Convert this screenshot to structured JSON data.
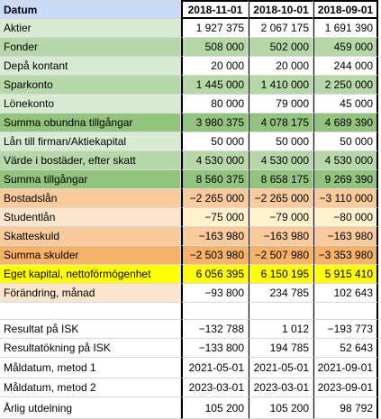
{
  "colors": {
    "light_green": "#d9ead3",
    "mid_green": "#93c47d",
    "light_orange": "#fce5cd",
    "mid_orange": "#f6b26b",
    "yellow": "#ffff00",
    "white": "#ffffff",
    "header_blue": "#c9daf8"
  },
  "header": {
    "label": "Datum",
    "dates": [
      "2018-11-01",
      "2018-10-01",
      "2018-09-01"
    ]
  },
  "rows": [
    {
      "label": "Aktier",
      "values": [
        "1 927 375",
        "2 067 175",
        "1 691 390"
      ],
      "label_color": "#d9ead3",
      "value_color": "#ffffff"
    },
    {
      "label": "Fonder",
      "values": [
        "508 000",
        "502 000",
        "459 000"
      ],
      "label_color": "#b6d7a8",
      "value_color": "#b6d7a8"
    },
    {
      "label": "Depå kontant",
      "values": [
        "20 000",
        "20 000",
        "244 000"
      ],
      "label_color": "#d9ead3",
      "value_color": "#ffffff"
    },
    {
      "label": "Sparkonto",
      "values": [
        "1 445 000",
        "1 410 000",
        "2 250 000"
      ],
      "label_color": "#b6d7a8",
      "value_color": "#b6d7a8"
    },
    {
      "label": "Lönekonto",
      "values": [
        "80 000",
        "79 000",
        "45 000"
      ],
      "label_color": "#d9ead3",
      "value_color": "#ffffff"
    },
    {
      "label": "Summa obundna tillgångar",
      "values": [
        "3 980 375",
        "4 078 175",
        "4 689 390"
      ],
      "label_color": "#93c47d",
      "value_color": "#93c47d"
    },
    {
      "label": "Lån till firman/Aktiekapital",
      "values": [
        "50 000",
        "50 000",
        "50 000"
      ],
      "label_color": "#d9ead3",
      "value_color": "#ffffff"
    },
    {
      "label": "Värde i bostäder, efter skatt",
      "values": [
        "4 530 000",
        "4 530 000",
        "4 530 000"
      ],
      "label_color": "#b6d7a8",
      "value_color": "#b6d7a8"
    },
    {
      "label": "Summa tillgångar",
      "values": [
        "8 560 375",
        "8 658 175",
        "9 269 390"
      ],
      "label_color": "#93c47d",
      "value_color": "#93c47d"
    },
    {
      "label": "Bostadslån",
      "values": [
        "−2 265 000",
        "−2 265 000",
        "−3 110 000"
      ],
      "label_color": "#f9cb9c",
      "value_color": "#f9cb9c"
    },
    {
      "label": "Studentlån",
      "values": [
        "−75 000",
        "−79 000",
        "−80 000"
      ],
      "label_color": "#fce5cd",
      "value_color": "#fff2cc"
    },
    {
      "label": "Skatteskuld",
      "values": [
        "−163 980",
        "−163 980",
        "−163 980"
      ],
      "label_color": "#f9cb9c",
      "value_color": "#f9cb9c"
    },
    {
      "label": "Summa skulder",
      "values": [
        "−2 503 980",
        "−2 507 980",
        "−3 353 980"
      ],
      "label_color": "#f6b26b",
      "value_color": "#f6b26b"
    },
    {
      "label": "Eget kapital, nettoförmögenhet",
      "values": [
        "6 056 395",
        "6 150 195",
        "5 915 410"
      ],
      "label_color": "#ffff00",
      "value_color": "#ffff00"
    },
    {
      "label": "Förändring, månad",
      "values": [
        "−93 800",
        "234 785",
        "102 643"
      ],
      "label_color": "#fce5cd",
      "value_color": "#ffffff"
    },
    {
      "label": "",
      "values": [
        "",
        "",
        ""
      ],
      "label_color": "#ffffff",
      "value_color": "#ffffff"
    },
    {
      "label": "Resultat på ISK",
      "values": [
        "−132 788",
        "1 012",
        "−193 773"
      ],
      "label_color": "#ffffff",
      "value_color": "#ffffff"
    },
    {
      "label": "Resultatökning på ISK",
      "values": [
        "−133 800",
        "194 785",
        "52 643"
      ],
      "label_color": "#ffffff",
      "value_color": "#ffffff"
    },
    {
      "label": "Måldatum, metod 1",
      "values": [
        "2021-05-01",
        "2021-05-01",
        "2021-09-01"
      ],
      "label_color": "#ffffff",
      "value_color": "#ffffff"
    },
    {
      "label": "Måldatum, metod 2",
      "values": [
        "2023-03-01",
        "2023-03-01",
        "2023-09-01"
      ],
      "label_color": "#ffffff",
      "value_color": "#ffffff"
    },
    {
      "label": "Årlig utdelning",
      "values": [
        "105 200",
        "105 200",
        "98 792"
      ],
      "label_color": "#ffffff",
      "value_color": "#ffffff"
    }
  ]
}
